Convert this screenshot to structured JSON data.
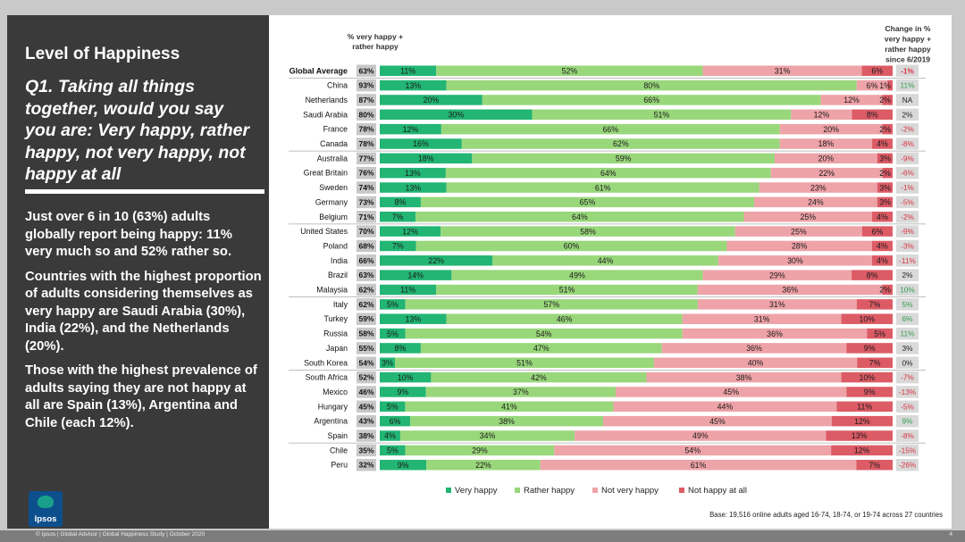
{
  "left_panel": {
    "title": "Level of Happiness",
    "question": "Q1. Taking all things together, would you say you are: Very happy, rather happy, not very happy, not happy at all",
    "paragraphs": [
      "Just over 6 in 10 (63%) adults globally report being happy: 11% very much so and 52% rather so.",
      "Countries with the highest proportion of adults considering themselves as very happy are Saudi Arabia (30%), India (22%), and the Netherlands (20%).",
      "Those with the highest prevalence of adults saying they are not happy at all are Spain (13%), Argentina and Chile (each 12%)."
    ],
    "logo_text": "Ipsos"
  },
  "footer": {
    "text": "© Ipsos | Global Advisor | Global Happiness Study | October 2020",
    "page": "4"
  },
  "colors": {
    "very_happy": "#22b573",
    "rather_happy": "#99d77b",
    "not_very_happy": "#eea3a8",
    "not_happy": "#dc5b65",
    "total_box": "#c8c8c8",
    "change_box": "#d9d9d9",
    "change_pos": "#2e9e4e",
    "change_neg": "#d9323f",
    "change_neutral": "#222222"
  },
  "chart_data": {
    "type": "bar",
    "orientation": "horizontal",
    "stacked": true,
    "xlim": [
      0,
      100
    ],
    "col_header_total": "% very happy + rather happy",
    "col_header_change": "Change in % very happy + rather happy since 6/2019",
    "series": [
      {
        "name": "Very happy"
      },
      {
        "name": "Rather happy"
      },
      {
        "name": "Not very happy"
      },
      {
        "name": "Not happy at all"
      }
    ],
    "legend_position": "bottom",
    "base_note": "Base: 19,516 online adults aged 16-74, 18-74, or 19-74 across 27 countries",
    "rows": [
      {
        "label": "Global Average",
        "total": "63%",
        "values": [
          11,
          52,
          31,
          6
        ],
        "change": "-1%",
        "group_end": true
      },
      {
        "label": "China",
        "total": "93%",
        "values": [
          13,
          80,
          6,
          1
        ],
        "change": "11%"
      },
      {
        "label": "Netherlands",
        "total": "87%",
        "values": [
          20,
          66,
          12,
          2
        ],
        "change": "NA"
      },
      {
        "label": "Saudi Arabia",
        "total": "80%",
        "values": [
          30,
          51,
          12,
          8
        ],
        "change": "2%"
      },
      {
        "label": "France",
        "total": "78%",
        "values": [
          12,
          66,
          20,
          2
        ],
        "change": "-2%"
      },
      {
        "label": "Canada",
        "total": "78%",
        "values": [
          16,
          62,
          18,
          4
        ],
        "change": "-8%",
        "group_end": true
      },
      {
        "label": "Australia",
        "total": "77%",
        "values": [
          18,
          59,
          20,
          3
        ],
        "change": "-9%"
      },
      {
        "label": "Great Britain",
        "total": "76%",
        "values": [
          13,
          64,
          22,
          2
        ],
        "change": "-6%"
      },
      {
        "label": "Sweden",
        "total": "74%",
        "values": [
          13,
          61,
          23,
          3
        ],
        "change": "-1%"
      },
      {
        "label": "Germany",
        "total": "73%",
        "values": [
          8,
          65,
          24,
          3
        ],
        "change": "-5%"
      },
      {
        "label": "Belgium",
        "total": "71%",
        "values": [
          7,
          64,
          25,
          4
        ],
        "change": "-2%",
        "group_end": true
      },
      {
        "label": "United States",
        "total": "70%",
        "values": [
          12,
          58,
          25,
          6
        ],
        "change": "-9%"
      },
      {
        "label": "Poland",
        "total": "68%",
        "values": [
          7,
          60,
          28,
          4
        ],
        "change": "-3%"
      },
      {
        "label": "India",
        "total": "66%",
        "values": [
          22,
          44,
          30,
          4
        ],
        "change": "-11%"
      },
      {
        "label": "Brazil",
        "total": "63%",
        "values": [
          14,
          49,
          29,
          8
        ],
        "change": "2%"
      },
      {
        "label": "Malaysia",
        "total": "62%",
        "values": [
          11,
          51,
          36,
          2
        ],
        "change": "10%",
        "group_end": true
      },
      {
        "label": "Italy",
        "total": "62%",
        "values": [
          5,
          57,
          31,
          7
        ],
        "change": "5%"
      },
      {
        "label": "Turkey",
        "total": "59%",
        "values": [
          13,
          46,
          31,
          10
        ],
        "change": "6%"
      },
      {
        "label": "Russia",
        "total": "58%",
        "values": [
          5,
          54,
          36,
          5
        ],
        "change": "11%"
      },
      {
        "label": "Japan",
        "total": "55%",
        "values": [
          8,
          47,
          36,
          9
        ],
        "change": "3%"
      },
      {
        "label": "South Korea",
        "total": "54%",
        "values": [
          3,
          51,
          40,
          7
        ],
        "change": "0%",
        "group_end": true
      },
      {
        "label": "South Africa",
        "total": "52%",
        "values": [
          10,
          42,
          38,
          10
        ],
        "change": "-7%"
      },
      {
        "label": "Mexico",
        "total": "46%",
        "values": [
          9,
          37,
          45,
          9
        ],
        "change": "-13%"
      },
      {
        "label": "Hungary",
        "total": "45%",
        "values": [
          5,
          41,
          44,
          11
        ],
        "change": "-5%"
      },
      {
        "label": "Argentina",
        "total": "43%",
        "values": [
          6,
          38,
          45,
          12
        ],
        "change": "9%"
      },
      {
        "label": "Spain",
        "total": "38%",
        "values": [
          4,
          34,
          49,
          13
        ],
        "change": "-8%",
        "group_end": true
      },
      {
        "label": "Chile",
        "total": "35%",
        "values": [
          5,
          29,
          54,
          12
        ],
        "change": "-15%"
      },
      {
        "label": "Peru",
        "total": "32%",
        "values": [
          9,
          22,
          61,
          7
        ],
        "change": "-26%"
      }
    ]
  }
}
